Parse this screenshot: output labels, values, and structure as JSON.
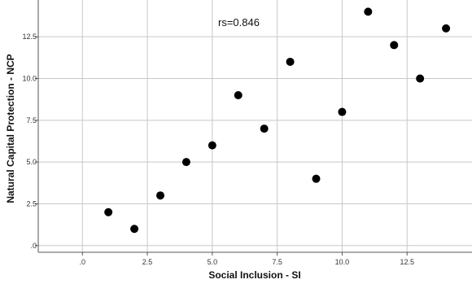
{
  "chart_data": {
    "type": "scatter",
    "xlabel": "Social Inclusion - SI",
    "ylabel": "Natural Capital Protection - NCP",
    "annotation": "rs=0.846",
    "xlim": [
      -1.7,
      15.0
    ],
    "ylim": [
      -0.4,
      14.7
    ],
    "x_ticks": [
      0,
      2.5,
      5,
      7.5,
      10,
      12.5
    ],
    "x_tick_labels": [
      ".0",
      "2.5",
      "5.0",
      "7.5",
      "10.0",
      "12.5"
    ],
    "y_ticks": [
      0,
      2.5,
      5,
      7.5,
      10,
      12.5
    ],
    "y_tick_labels": [
      ".0",
      "2.5",
      "5.0",
      "7.5",
      "10.0",
      "12.5"
    ],
    "grid": true,
    "points": [
      {
        "x": 1,
        "y": 2
      },
      {
        "x": 2,
        "y": 1
      },
      {
        "x": 3,
        "y": 3
      },
      {
        "x": 4,
        "y": 5
      },
      {
        "x": 5,
        "y": 6
      },
      {
        "x": 6,
        "y": 9
      },
      {
        "x": 7,
        "y": 7
      },
      {
        "x": 8,
        "y": 11
      },
      {
        "x": 9,
        "y": 4
      },
      {
        "x": 10,
        "y": 8
      },
      {
        "x": 11,
        "y": 14
      },
      {
        "x": 12,
        "y": 12
      },
      {
        "x": 13,
        "y": 10
      },
      {
        "x": 14,
        "y": 13
      }
    ],
    "colors": {
      "point": "#000000",
      "grid": "#c8c8c8",
      "axis": "#555555"
    }
  }
}
